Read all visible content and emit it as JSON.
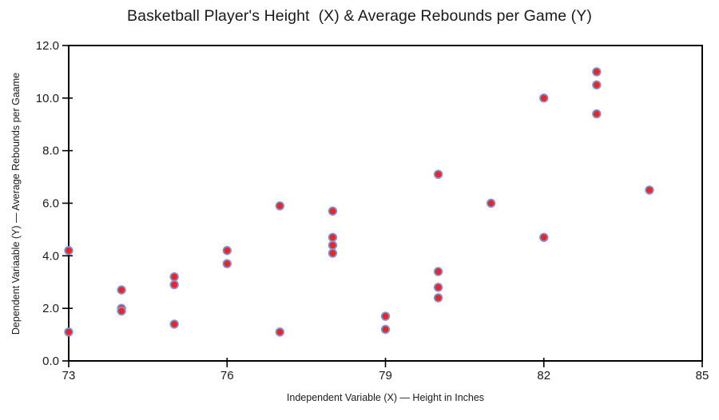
{
  "chart_data": {
    "type": "scatter",
    "title": "Basketball Player's Height  (X) & Average Rebounds per Game (Y)",
    "xlabel": "Independent Variable (X) — Height in Inches",
    "ylabel": "Dependent Variaable (Y) — Average Rebounds per Gaame",
    "xlim": [
      73,
      85
    ],
    "ylim": [
      0.0,
      12.0
    ],
    "x_ticks": [
      "73",
      "76",
      "79",
      "82",
      "85"
    ],
    "y_ticks": [
      "0.0",
      "2.0",
      "4.0",
      "6.0",
      "8.0",
      "10.0",
      "12.0"
    ],
    "grid": false,
    "legend_position": "none",
    "axis_color": "#000000",
    "marker_fill": "#e8242c",
    "marker_stroke": "#8591cb",
    "points": [
      {
        "x": 73,
        "y": 4.2
      },
      {
        "x": 73,
        "y": 1.1
      },
      {
        "x": 74,
        "y": 2.7
      },
      {
        "x": 74,
        "y": 2.0
      },
      {
        "x": 74,
        "y": 1.9
      },
      {
        "x": 75,
        "y": 3.2
      },
      {
        "x": 75,
        "y": 2.9
      },
      {
        "x": 75,
        "y": 1.4
      },
      {
        "x": 76,
        "y": 4.2
      },
      {
        "x": 76,
        "y": 3.7
      },
      {
        "x": 77,
        "y": 5.9
      },
      {
        "x": 77,
        "y": 1.1
      },
      {
        "x": 78,
        "y": 5.7
      },
      {
        "x": 78,
        "y": 4.7
      },
      {
        "x": 78,
        "y": 4.4
      },
      {
        "x": 78,
        "y": 4.1
      },
      {
        "x": 79,
        "y": 1.7
      },
      {
        "x": 79,
        "y": 1.2
      },
      {
        "x": 80,
        "y": 7.1
      },
      {
        "x": 80,
        "y": 3.4
      },
      {
        "x": 80,
        "y": 2.8
      },
      {
        "x": 80,
        "y": 2.4
      },
      {
        "x": 81,
        "y": 6.0
      },
      {
        "x": 82,
        "y": 10.0
      },
      {
        "x": 82,
        "y": 4.7
      },
      {
        "x": 83,
        "y": 11.0
      },
      {
        "x": 83,
        "y": 10.5
      },
      {
        "x": 83,
        "y": 9.4
      },
      {
        "x": 84,
        "y": 6.5
      }
    ]
  }
}
